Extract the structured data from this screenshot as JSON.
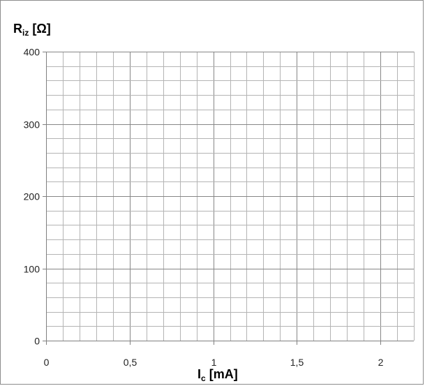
{
  "chart_data": {
    "type": "line",
    "title": "",
    "ylabel": {
      "main": "R",
      "sub": "iz",
      "unit": "[Ω]"
    },
    "xlabel": {
      "main": "I",
      "sub": "c",
      "unit": "[mA]"
    },
    "xlim": [
      0,
      2.2
    ],
    "ylim": [
      0,
      400
    ],
    "x_ticks": [
      0,
      0.5,
      1,
      1.5,
      2
    ],
    "x_tick_labels": [
      "0",
      "0,5",
      "1",
      "1,5",
      "2"
    ],
    "y_ticks": [
      0,
      100,
      200,
      300,
      400
    ],
    "y_tick_labels": [
      "0",
      "100",
      "200",
      "300",
      "400"
    ],
    "x_minor_step": 0.1,
    "y_minor_step": 20,
    "grid": true,
    "series": []
  }
}
